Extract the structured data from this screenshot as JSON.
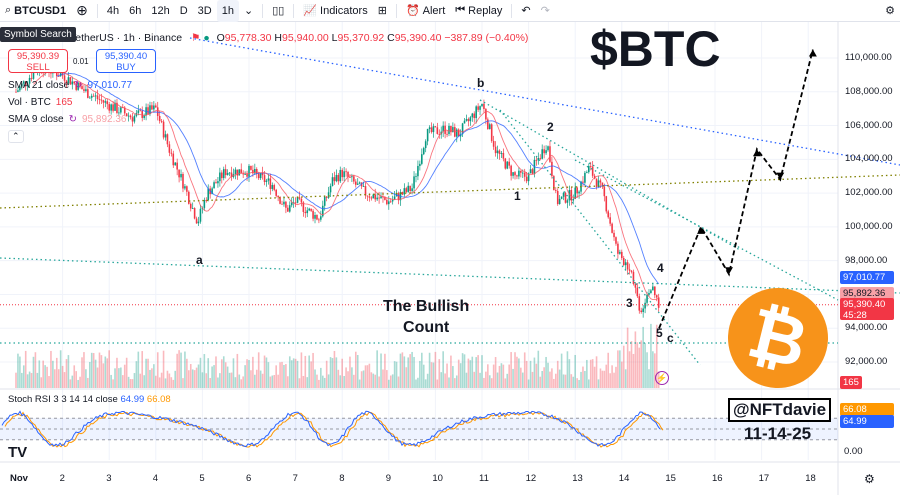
{
  "toolbar": {
    "symbol": "BTCUSD1",
    "intervals": [
      "4h",
      "6h",
      "12h",
      "D",
      "3D",
      "1h"
    ],
    "active_interval": "1h",
    "indicators": "Indicators",
    "alert": "Alert",
    "replay": "Replay"
  },
  "tooltip": "Symbol Search",
  "legend": {
    "title": "TetherUS · 1h · Binance",
    "o_label": "O",
    "o": "95,778.30",
    "h_label": "H",
    "h": "95,940.00",
    "l_label": "L",
    "l": "95,370.92",
    "c_label": "C",
    "c": "95,390.40",
    "change": "−387.89 (−0.40%)"
  },
  "trade": {
    "sell_price": "95,390.39",
    "sell": "SELL",
    "spread": "0.01",
    "buy_price": "95,390.40",
    "buy": "BUY"
  },
  "indicators": [
    {
      "label": "SMA 21 close",
      "value": "97,010.77"
    },
    {
      "label": "Vol · BTC",
      "value": "165"
    },
    {
      "label": "SMA 9 close",
      "value": "95,892.36"
    }
  ],
  "price_axis": [
    "110,000.00",
    "108,000.00",
    "106,000.00",
    "104,000.00",
    "102,000.00",
    "100,000.00",
    "98,000.00",
    "94,000.00",
    "92,000.00"
  ],
  "price_tags": {
    "sma21": "97,010.77",
    "sma9": "95,892.36",
    "last": "95,390.40",
    "countdown": "45:28",
    "volume": "165"
  },
  "stoch": {
    "label": "Stoch RSI 3 3 14 14 close",
    "k": "64.99",
    "d": "66.08",
    "axis_zero": "0.00"
  },
  "date_axis": [
    "Nov",
    "2",
    "3",
    "4",
    "5",
    "6",
    "7",
    "8",
    "9",
    "10",
    "11",
    "12",
    "13",
    "14",
    "15",
    "16",
    "17",
    "18"
  ],
  "annotations": {
    "headline": "$BTC",
    "count": "The Bullish\nCount",
    "waves": [
      "a",
      "b",
      "1",
      "2",
      "3",
      "4",
      "5",
      "c"
    ],
    "handle": "@NFTdavie",
    "date": "11-14-25"
  },
  "colors": {
    "up": "#089981",
    "down": "#f23645",
    "sma21": "#2962ff",
    "sma9": "#f7525f",
    "btc": "#f7931a"
  },
  "chart_data": {
    "type": "line",
    "title": "BTCUSDT 1h",
    "x_unit": "day of November",
    "keypoints": [
      [
        1,
        108000
      ],
      [
        1.5,
        109500
      ],
      [
        2,
        109000
      ],
      [
        2.5,
        108000
      ],
      [
        3,
        107200
      ],
      [
        3.5,
        106500
      ],
      [
        4,
        107000
      ],
      [
        4.3,
        104500
      ],
      [
        4.6,
        102500
      ],
      [
        4.9,
        100300
      ],
      [
        5.1,
        102000
      ],
      [
        5.5,
        103300
      ],
      [
        6,
        103300
      ],
      [
        6.5,
        102500
      ],
      [
        6.8,
        101000
      ],
      [
        7,
        101500
      ],
      [
        7.5,
        100500
      ],
      [
        7.8,
        102800
      ],
      [
        8,
        103200
      ],
      [
        8.5,
        102000
      ],
      [
        9,
        101500
      ],
      [
        9.5,
        102300
      ],
      [
        9.8,
        105500
      ],
      [
        10.2,
        105800
      ],
      [
        10.5,
        105500
      ],
      [
        11,
        107300
      ],
      [
        11.3,
        104500
      ],
      [
        11.7,
        103000
      ],
      [
        12,
        103000
      ],
      [
        12.4,
        105000
      ],
      [
        12.6,
        101500
      ],
      [
        13,
        102000
      ],
      [
        13.3,
        103500
      ],
      [
        13.6,
        102000
      ],
      [
        13.9,
        98500
      ],
      [
        14.2,
        97500
      ],
      [
        14.4,
        95000
      ],
      [
        14.6,
        96500
      ],
      [
        14.8,
        95390
      ]
    ],
    "projection": [
      [
        14.8,
        94000
      ],
      [
        15.7,
        100000
      ],
      [
        16.3,
        97200
      ],
      [
        16.9,
        104600
      ],
      [
        17.4,
        102800
      ],
      [
        18.1,
        110500
      ]
    ],
    "ylim": [
      90000,
      111000
    ]
  }
}
